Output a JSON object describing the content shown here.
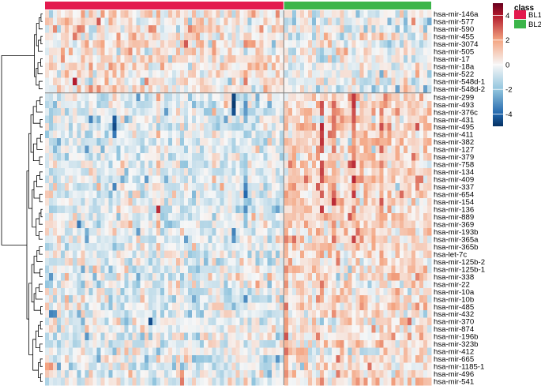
{
  "chart_data": {
    "type": "heatmap",
    "title": "",
    "annotation_label": "class",
    "row_labels": [
      "hsa-mir-146a",
      "hsa-mir-577",
      "hsa-mir-590",
      "hsa-mir-455",
      "hsa-mir-3074",
      "hsa-mir-505",
      "hsa-mir-17",
      "hsa-mir-18a",
      "hsa-mir-522",
      "hsa-mir-548d-1",
      "hsa-mir-548d-2",
      "hsa-mir-299",
      "hsa-mir-493",
      "hsa-mir-376c",
      "hsa-mir-431",
      "hsa-mir-495",
      "hsa-mir-411",
      "hsa-mir-382",
      "hsa-mir-127",
      "hsa-mir-379",
      "hsa-mir-758",
      "hsa-mir-134",
      "hsa-mir-409",
      "hsa-mir-337",
      "hsa-mir-654",
      "hsa-mir-154",
      "hsa-mir-136",
      "hsa-mir-889",
      "hsa-mir-369",
      "hsa-mir-193b",
      "hsa-mir-365a",
      "hsa-mir-365b",
      "hsa-let-7c",
      "hsa-mir-125b-2",
      "hsa-mir-125b-1",
      "hsa-mir-338",
      "hsa-mir-22",
      "hsa-mir-10a",
      "hsa-mir-10b",
      "hsa-mir-485",
      "hsa-mir-432",
      "hsa-mir-370",
      "hsa-mir-874",
      "hsa-mir-196b",
      "hsa-mir-323b",
      "hsa-mir-412",
      "hsa-mir-665",
      "hsa-mir-1185-1",
      "hsa-mir-496",
      "hsa-mir-541"
    ],
    "row_split_after": 11,
    "groups": [
      {
        "name": "BL1",
        "color": "#e31a4e",
        "n_columns": 60
      },
      {
        "name": "BL2",
        "color": "#3cb54a",
        "n_columns": 37
      }
    ],
    "color_scale": {
      "min": -5,
      "max": 5,
      "stops": [
        {
          "value": -5,
          "color": "#053061"
        },
        {
          "value": -4,
          "color": "#2166ac"
        },
        {
          "value": -2,
          "color": "#92c5de"
        },
        {
          "value": 0,
          "color": "#f7f7f7"
        },
        {
          "value": 2,
          "color": "#f4a582"
        },
        {
          "value": 4,
          "color": "#b2182b"
        },
        {
          "value": 5,
          "color": "#67001f"
        }
      ],
      "ticks": [
        "4",
        "2",
        "0",
        "-2",
        "-4"
      ]
    },
    "noise_seed": 20240611,
    "row_profiles": [
      {
        "bl1": 0.35,
        "bl2": -0.35,
        "sd": 0.9
      },
      {
        "bl1": 0.45,
        "bl2": -0.25,
        "sd": 0.9
      },
      {
        "bl1": 0.35,
        "bl2": -0.3,
        "sd": 0.95
      },
      {
        "bl1": 0.4,
        "bl2": -0.25,
        "sd": 0.9
      },
      {
        "bl1": 0.35,
        "bl2": -0.3,
        "sd": 0.9
      },
      {
        "bl1": 0.4,
        "bl2": -0.2,
        "sd": 0.9
      },
      {
        "bl1": 0.5,
        "bl2": -0.2,
        "sd": 0.85
      },
      {
        "bl1": 0.45,
        "bl2": -0.2,
        "sd": 0.85
      },
      {
        "bl1": 0.35,
        "bl2": -0.3,
        "sd": 0.9
      },
      {
        "bl1": 0.3,
        "bl2": -0.35,
        "sd": 0.9
      },
      {
        "bl1": 0.3,
        "bl2": -0.35,
        "sd": 0.9
      },
      {
        "bl1": -0.5,
        "bl2": 0.8,
        "sd": 0.8
      },
      {
        "bl1": -0.45,
        "bl2": 0.75,
        "sd": 0.8
      },
      {
        "bl1": -0.5,
        "bl2": 0.8,
        "sd": 0.8
      },
      {
        "bl1": -0.45,
        "bl2": 0.75,
        "sd": 0.8
      },
      {
        "bl1": -0.5,
        "bl2": 0.85,
        "sd": 0.8
      },
      {
        "bl1": -0.5,
        "bl2": 0.85,
        "sd": 0.8
      },
      {
        "bl1": -0.45,
        "bl2": 0.8,
        "sd": 0.8
      },
      {
        "bl1": -0.45,
        "bl2": 0.8,
        "sd": 0.8
      },
      {
        "bl1": -0.5,
        "bl2": 0.85,
        "sd": 0.8
      },
      {
        "bl1": -0.5,
        "bl2": 0.85,
        "sd": 0.8
      },
      {
        "bl1": -0.45,
        "bl2": 0.8,
        "sd": 0.8
      },
      {
        "bl1": -0.45,
        "bl2": 0.8,
        "sd": 0.8
      },
      {
        "bl1": -0.45,
        "bl2": 0.8,
        "sd": 0.8
      },
      {
        "bl1": -0.5,
        "bl2": 0.85,
        "sd": 0.8
      },
      {
        "bl1": -0.5,
        "bl2": 0.85,
        "sd": 0.8
      },
      {
        "bl1": -0.5,
        "bl2": 0.9,
        "sd": 0.8
      },
      {
        "bl1": -0.45,
        "bl2": 0.8,
        "sd": 0.8
      },
      {
        "bl1": -0.45,
        "bl2": 0.75,
        "sd": 0.8
      },
      {
        "bl1": -0.3,
        "bl2": 0.55,
        "sd": 0.85
      },
      {
        "bl1": -0.35,
        "bl2": 0.7,
        "sd": 0.85
      },
      {
        "bl1": -0.35,
        "bl2": 0.7,
        "sd": 0.85
      },
      {
        "bl1": -0.3,
        "bl2": 0.45,
        "sd": 0.9
      },
      {
        "bl1": -0.3,
        "bl2": 0.45,
        "sd": 0.9
      },
      {
        "bl1": -0.3,
        "bl2": 0.45,
        "sd": 0.9
      },
      {
        "bl1": -0.3,
        "bl2": 0.4,
        "sd": 0.9
      },
      {
        "bl1": -0.25,
        "bl2": 0.4,
        "sd": 0.9
      },
      {
        "bl1": -0.3,
        "bl2": 0.45,
        "sd": 0.9
      },
      {
        "bl1": -0.3,
        "bl2": 0.45,
        "sd": 0.9
      },
      {
        "bl1": -0.35,
        "bl2": 0.5,
        "sd": 0.9
      },
      {
        "bl1": -0.35,
        "bl2": 0.5,
        "sd": 0.9
      },
      {
        "bl1": -0.3,
        "bl2": 0.45,
        "sd": 0.9
      },
      {
        "bl1": -0.3,
        "bl2": 0.45,
        "sd": 0.9
      },
      {
        "bl1": -0.3,
        "bl2": 0.45,
        "sd": 0.9
      },
      {
        "bl1": -0.3,
        "bl2": 0.45,
        "sd": 0.9
      },
      {
        "bl1": -0.3,
        "bl2": 0.45,
        "sd": 0.9
      },
      {
        "bl1": -0.3,
        "bl2": 0.45,
        "sd": 0.9
      },
      {
        "bl1": -0.3,
        "bl2": 0.45,
        "sd": 0.9
      },
      {
        "bl1": -0.3,
        "bl2": 0.4,
        "sd": 0.9
      },
      {
        "bl1": -0.3,
        "bl2": 0.45,
        "sd": 0.9
      }
    ],
    "column_effects": [
      {
        "column": 28,
        "rows": [
          11,
          31
        ],
        "value": 1.6
      },
      {
        "column": 72,
        "rows": [
          11,
          31
        ],
        "value": 1.4
      },
      {
        "column": 77,
        "rows": [
          11,
          31
        ],
        "value": 1.5
      },
      {
        "column": 84,
        "rows": [
          12,
          28
        ],
        "value": 1.3
      },
      {
        "column": 50,
        "rows": [
          11,
          28
        ],
        "value": -1.8
      },
      {
        "column": 30,
        "rows": [
          11,
          31
        ],
        "value": -1.2
      },
      {
        "column": 60,
        "rows": [
          28,
          49
        ],
        "value": 1.2
      },
      {
        "column": 38,
        "rows": [
          32,
          49
        ],
        "value": -1.0
      }
    ],
    "highlights": [
      {
        "row": 12,
        "column": 69,
        "value": 3.2
      },
      {
        "row": 13,
        "column": 69,
        "value": 3.0
      },
      {
        "row": 15,
        "column": 69,
        "value": 3.8
      },
      {
        "row": 16,
        "column": 69,
        "value": 3.4
      },
      {
        "row": 17,
        "column": 69,
        "value": 3.6
      },
      {
        "row": 18,
        "column": 69,
        "value": 3.0
      },
      {
        "row": 20,
        "column": 69,
        "value": 3.2
      },
      {
        "row": 21,
        "column": 69,
        "value": 3.4
      },
      {
        "row": 22,
        "column": 69,
        "value": 3.1
      },
      {
        "row": 24,
        "column": 69,
        "value": 3.0
      },
      {
        "row": 26,
        "column": 69,
        "value": 3.5
      },
      {
        "row": 15,
        "column": 77,
        "value": 2.6
      },
      {
        "row": 19,
        "column": 77,
        "value": 2.4
      },
      {
        "row": 11,
        "column": 47,
        "value": -4.6
      },
      {
        "row": 12,
        "column": 47,
        "value": -4.8
      },
      {
        "row": 13,
        "column": 47,
        "value": -4.4
      },
      {
        "row": 14,
        "column": 17,
        "value": -4.2
      },
      {
        "row": 15,
        "column": 17,
        "value": -4.5
      },
      {
        "row": 16,
        "column": 17,
        "value": -3.6
      },
      {
        "row": 14,
        "column": 11,
        "value": -3.4
      },
      {
        "row": 11,
        "column": 23,
        "value": -3.0
      },
      {
        "row": 28,
        "column": 8,
        "value": -3.6
      },
      {
        "row": 29,
        "column": 47,
        "value": -3.4
      },
      {
        "row": 30,
        "column": 47,
        "value": -3.0
      },
      {
        "row": 30,
        "column": 10,
        "value": -2.8
      },
      {
        "row": 35,
        "column": 1,
        "value": -3.0
      },
      {
        "row": 40,
        "column": 1,
        "value": -3.4
      },
      {
        "row": 40,
        "column": 2,
        "value": -3.2
      },
      {
        "row": 41,
        "column": 26,
        "value": -4.4
      },
      {
        "row": 43,
        "column": 10,
        "value": -3.0
      },
      {
        "row": 30,
        "column": 62,
        "value": 2.8
      },
      {
        "row": 33,
        "column": 61,
        "value": 2.2
      },
      {
        "row": 35,
        "column": 23,
        "value": -2.6
      },
      {
        "row": 2,
        "column": 8,
        "value": 2.6
      },
      {
        "row": 2,
        "column": 9,
        "value": 2.4
      },
      {
        "row": 0,
        "column": 52,
        "value": 2.2
      },
      {
        "row": 4,
        "column": 50,
        "value": 2.4
      },
      {
        "row": 1,
        "column": 67,
        "value": -2.2
      },
      {
        "row": 9,
        "column": 15,
        "value": 2.0
      },
      {
        "row": 7,
        "column": 11,
        "value": 2.2
      },
      {
        "row": 34,
        "column": 9,
        "value": -2.6
      },
      {
        "row": 46,
        "column": 13,
        "value": -2.6
      }
    ],
    "dendrogram": {
      "orientation": "left",
      "side": "rows",
      "top_split": [
        [
          0,
          10
        ],
        [
          11,
          49
        ]
      ]
    }
  }
}
